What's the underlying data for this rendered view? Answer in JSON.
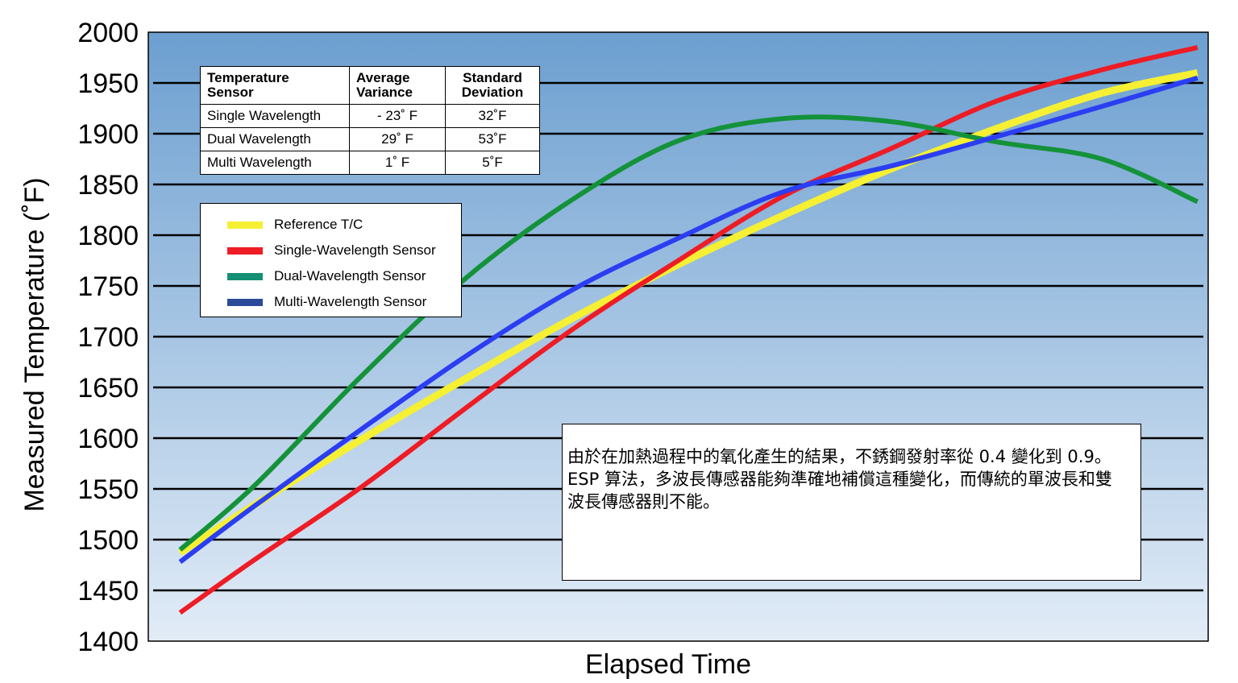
{
  "chart_data": {
    "type": "line",
    "xlabel": "Elapsed Time",
    "ylabel": "Measured Temperature (˚F)",
    "ylim": [
      1400,
      2000
    ],
    "yticks": [
      2000,
      1950,
      1900,
      1850,
      1800,
      1750,
      1700,
      1650,
      1600,
      1550,
      1500,
      1450,
      1400
    ],
    "xlim": [
      0,
      100
    ],
    "grid": true,
    "legend_position": "upper-left",
    "series": [
      {
        "name": "Reference T/C",
        "color": "#f5f033",
        "points": [
          [
            3,
            1487
          ],
          [
            10,
            1534
          ],
          [
            20,
            1598
          ],
          [
            30,
            1659
          ],
          [
            40,
            1718
          ],
          [
            50,
            1771
          ],
          [
            60,
            1820
          ],
          [
            70,
            1865
          ],
          [
            80,
            1905
          ],
          [
            90,
            1940
          ],
          [
            99,
            1960
          ]
        ]
      },
      {
        "name": "Single-Wavelength Sensor",
        "color": "#ee1c25",
        "points": [
          [
            3,
            1428
          ],
          [
            10,
            1480
          ],
          [
            20,
            1551
          ],
          [
            30,
            1630
          ],
          [
            40,
            1707
          ],
          [
            50,
            1775
          ],
          [
            60,
            1839
          ],
          [
            70,
            1885
          ],
          [
            80,
            1932
          ],
          [
            90,
            1963
          ],
          [
            99,
            1985
          ]
        ]
      },
      {
        "name": "Dual-Wavelength Sensor",
        "color": "#14923a",
        "points": [
          [
            3,
            1490
          ],
          [
            10,
            1553
          ],
          [
            20,
            1660
          ],
          [
            30,
            1758
          ],
          [
            40,
            1835
          ],
          [
            50,
            1893
          ],
          [
            60,
            1915
          ],
          [
            70,
            1912
          ],
          [
            80,
            1892
          ],
          [
            90,
            1875
          ],
          [
            99,
            1833
          ]
        ]
      },
      {
        "name": "Multi-Wavelength Sensor",
        "color": "#2b3ef2",
        "points": [
          [
            3,
            1478
          ],
          [
            10,
            1533
          ],
          [
            20,
            1608
          ],
          [
            30,
            1681
          ],
          [
            40,
            1746
          ],
          [
            50,
            1797
          ],
          [
            60,
            1843
          ],
          [
            70,
            1868
          ],
          [
            80,
            1897
          ],
          [
            90,
            1927
          ],
          [
            99,
            1955
          ]
        ]
      }
    ]
  },
  "stats_table": {
    "headers": [
      "Temperature\nSensor",
      "Average\nVariance",
      "Standard\nDeviation"
    ],
    "rows": [
      [
        "Single Wavelength",
        "- 23˚ F",
        "32˚F"
      ],
      [
        "Dual Wavelength",
        "29˚ F",
        "53˚F"
      ],
      [
        "Multi Wavelength",
        "1˚ F",
        "5˚F"
      ]
    ]
  },
  "note": "由於在加熱過程中的氧化產生的結果，不銹鋼發射率從 0.4 變化到 0.9。ESP 算法，多波長傳感器能夠準確地補償這種變化，而傳統的單波長和雙波長傳感器則不能。",
  "colors": {
    "plot_gradient_top": "#6c9fd0",
    "plot_gradient_bottom": "#e2ecf7",
    "gridline": "#000000",
    "legend_swatch_reference": "#f5f033",
    "legend_swatch_single": "#ee1c25",
    "legend_swatch_dual": "#148f73",
    "legend_swatch_multi": "#2b4b9a"
  }
}
